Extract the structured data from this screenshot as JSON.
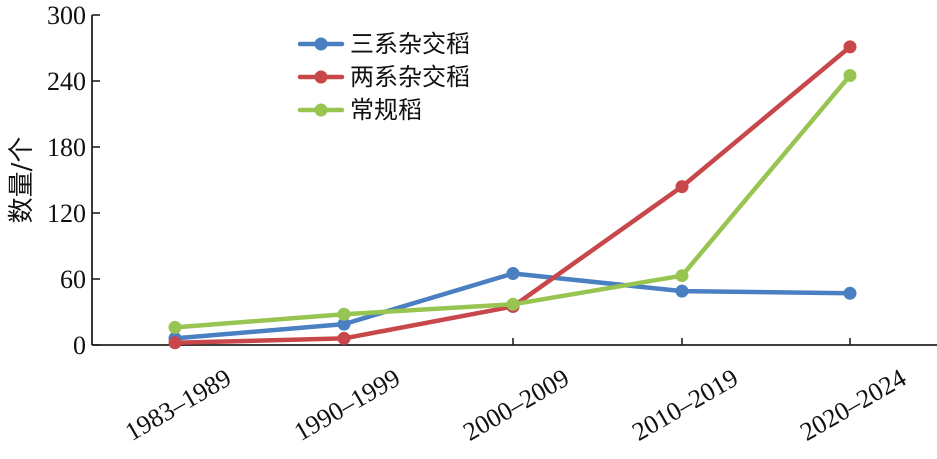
{
  "chart_data": {
    "type": "line",
    "title": "",
    "ylabel": "数量/个",
    "xlabel": "",
    "categories": [
      "1983–1989",
      "1990–1999",
      "2000–2009",
      "2010–2019",
      "2020–2024"
    ],
    "ylim": [
      0,
      300
    ],
    "yticks": [
      0,
      60,
      120,
      180,
      240,
      300
    ],
    "grid": false,
    "legend_position": "top-center",
    "series": [
      {
        "name": "三系杂交稻",
        "color": "#4a7fc1",
        "values": [
          6,
          19,
          65,
          49,
          47
        ]
      },
      {
        "name": "两系杂交稻",
        "color": "#c8474a",
        "values": [
          2,
          6,
          35,
          144,
          271
        ]
      },
      {
        "name": "常规稻",
        "color": "#98c552",
        "values": [
          16,
          28,
          37,
          63,
          245
        ]
      }
    ]
  }
}
